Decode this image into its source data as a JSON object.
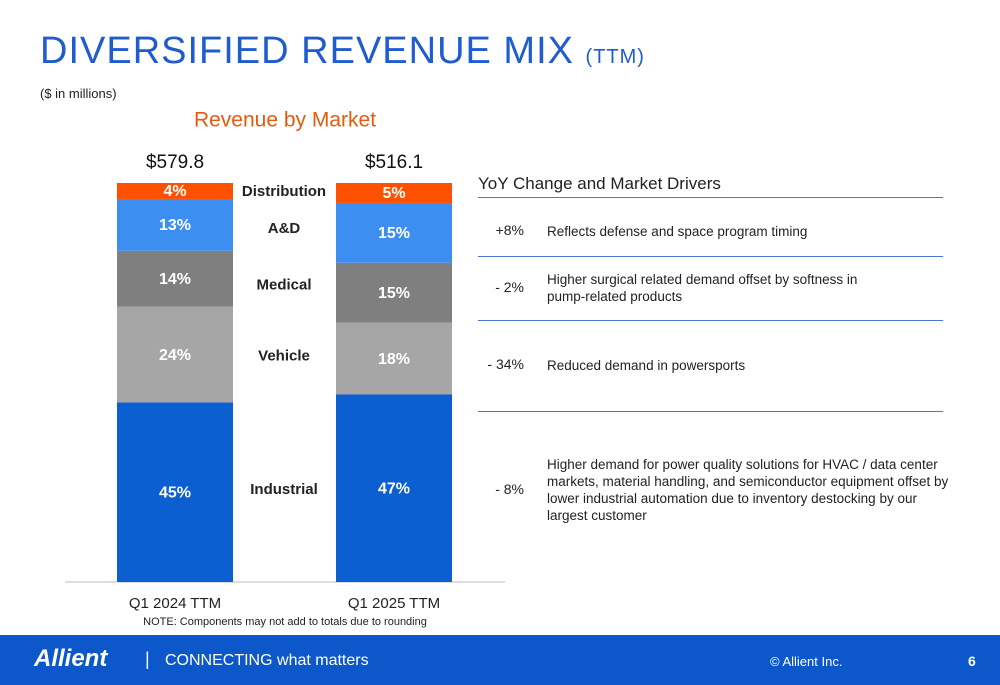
{
  "header": {
    "title": "DIVERSIFIED REVENUE MIX",
    "title_suffix": "(TTM)",
    "subtitle": "($ in millions)"
  },
  "chart_data": {
    "type": "stacked_bar",
    "title": "Revenue by Market",
    "categories": [
      "Q1 2024 TTM",
      "Q1 2025 TTM"
    ],
    "series": [
      {
        "name": "Industrial",
        "color": "#0b5fd1",
        "values": [
          45,
          47
        ],
        "value_labels": [
          "45%",
          "47%"
        ]
      },
      {
        "name": "Vehicle",
        "color": "#a6a6a6",
        "values": [
          24,
          18
        ],
        "value_labels": [
          "24%",
          "18%"
        ]
      },
      {
        "name": "Medical",
        "color": "#7f7f7f",
        "values": [
          14,
          15
        ],
        "value_labels": [
          "14%",
          "15%"
        ]
      },
      {
        "name": "A&D",
        "color": "#3c8ef0",
        "values": [
          13,
          15
        ],
        "value_labels": [
          "13%",
          "15%"
        ]
      },
      {
        "name": "Distribution",
        "color": "#ff5000",
        "values": [
          4,
          5
        ],
        "value_labels": [
          "4%",
          "5%"
        ]
      }
    ],
    "totals": {
      "values": [
        579.8,
        516.1
      ],
      "value_labels": [
        "$579.8",
        "$516.1"
      ]
    },
    "note": "NOTE: Components may not add to totals due to rounding"
  },
  "table": {
    "title": "YoY Change and Market Drivers",
    "rows": [
      [
        "+8%",
        "Reflects defense and space program timing"
      ],
      [
        "- 2%",
        "Higher surgical related demand offset by softness in pump-related products"
      ],
      [
        "- 34%",
        "Reduced demand in powersports"
      ],
      [
        "- 8%",
        "Higher demand for power quality solutions for HVAC / data center markets, material handling, and semiconductor equipment offset by lower industrial automation due to inventory destocking by our largest customer"
      ]
    ]
  },
  "footer": {
    "logo": "Allient",
    "separator": "|",
    "tagline_bold": "CONNECTING",
    "tagline": "what matters",
    "copyright": "© Allient Inc.",
    "page": "6"
  }
}
